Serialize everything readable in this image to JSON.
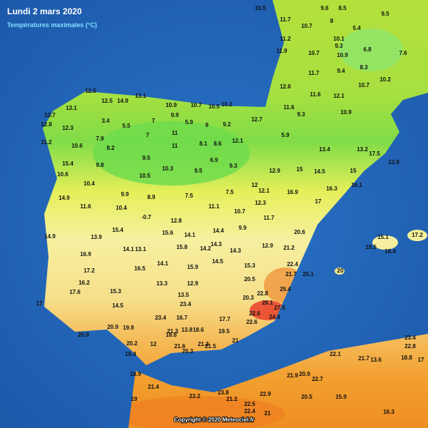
{
  "header": {
    "title": "Lundi 2 mars 2020",
    "subtitle": "Températures maximales (°C)"
  },
  "stations": [
    "10.5",
    "9.6",
    "8.5",
    "11.7",
    "10.7",
    "8",
    "9.5",
    "10.1",
    "9.3",
    "5.4",
    "11.2",
    "11.9",
    "10.7",
    "10.9",
    "6.8",
    "7.6",
    "11.7",
    "9.4",
    "8.3",
    "12.6",
    "11.6",
    "12.1",
    "10.7",
    "10.2",
    "12.5",
    "14.9",
    "13.1",
    "12.5",
    "10.9",
    "10.7",
    "10.5",
    "10.2",
    "13.7",
    "12.8",
    "13.1",
    "11.6",
    "9.3",
    "10.9",
    "12.3",
    "3.4",
    "5.5",
    "7",
    "9.9",
    "5.9",
    "9",
    "9.2",
    "12.7",
    "7",
    "7.9",
    "11",
    "8.1",
    "8.6",
    "12.1",
    "5.9",
    "11.2",
    "10.6",
    "8.2",
    "9.5",
    "11",
    "6.9",
    "13.4",
    "13.2",
    "15.4",
    "9.8",
    "10.3",
    "9.5",
    "9.3",
    "12.9",
    "15",
    "14.5",
    "15",
    "17.5",
    "10.6",
    "10.5",
    "13.9",
    "14.9",
    "10.4",
    "9.9",
    "8.9",
    "7.5",
    "7.5",
    "12",
    "12.1",
    "16.9",
    "16.3",
    "16.1",
    "11.6",
    "10.4",
    "10.7",
    "12.3",
    "17",
    "-0.7",
    "12.8",
    "11.1",
    "11.7",
    "14.9",
    "13.9",
    "15.4",
    "15.6",
    "14.1",
    "14.4",
    "9.9",
    "20.6",
    "15.1",
    "17.2",
    "14.1",
    "13.1",
    "15.8",
    "14.2",
    "14.3",
    "14.3",
    "12.9",
    "21.2",
    "19.5",
    "18.4",
    "16.9",
    "16.5",
    "14.1",
    "15.9",
    "14.5",
    "15.3",
    "22.4",
    "17.2",
    "16.2",
    "15.3",
    "13.3",
    "12.9",
    "20.5",
    "21.7",
    "25.1",
    "20",
    "14.5",
    "13.5",
    "20.3",
    "22.8",
    "25.4",
    "23.4",
    "16.7",
    "21.3",
    "23.4",
    "26.1",
    "27.5",
    "17",
    "17.6",
    "17.7",
    "22.6",
    "24.8",
    "20.8",
    "20.9",
    "19.9",
    "18.8",
    "13.8",
    "18.6",
    "19.5",
    "22.6",
    "20.2",
    "19.4",
    "21.3",
    "12",
    "21.6",
    "20.3",
    "21.5",
    "21",
    "23.4",
    "22.8",
    "22.1",
    "21.7",
    "13.6",
    "18.8",
    "21.9",
    "20.9",
    "22.7",
    "18.9",
    "19",
    "21.4",
    "23.2",
    "23.8",
    "21.2",
    "22.9",
    "20.5",
    "15.9",
    "16.3",
    "22.5",
    "22.4",
    "21",
    "17"
  ],
  "footer": {
    "copyright": "Copyright © 2020 Meteociel.fr"
  }
}
